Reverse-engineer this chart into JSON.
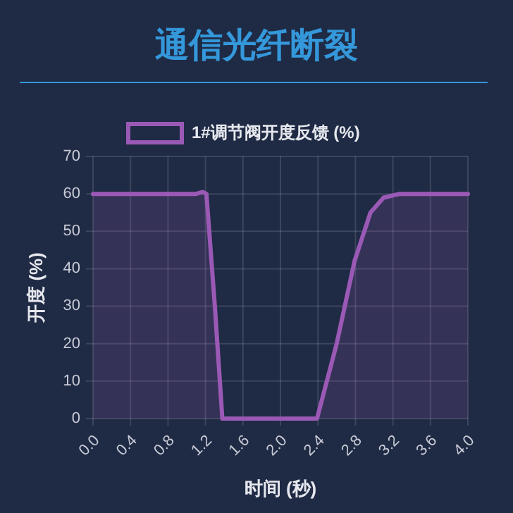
{
  "chart_data": {
    "type": "area",
    "title": "通信光纤断裂",
    "xlabel": "时间 (秒)",
    "ylabel": "开度 (%)",
    "x": [
      0,
      0.4,
      0.8,
      1.1,
      1.17,
      1.21,
      1.3,
      1.38,
      1.6,
      2.0,
      2.39,
      2.6,
      2.79,
      2.96,
      3.1,
      3.27,
      3.6,
      4.0
    ],
    "series": [
      {
        "name": "1#调节阀开度反馈 (%)",
        "color": "#9b59b6",
        "values": [
          60,
          60,
          60,
          60,
          60.5,
          60,
          30,
          0,
          0,
          0,
          0,
          20,
          42,
          55,
          59,
          60,
          60,
          60
        ]
      }
    ],
    "xlim": [
      0,
      4.0
    ],
    "xticks": [
      {
        "value": 0,
        "label": "0.0"
      },
      0.4,
      0.8,
      1.2,
      1.6,
      {
        "value": 2,
        "label": "2.0"
      },
      2.4,
      2.8,
      3.2,
      3.6,
      {
        "value": 4,
        "label": "4.0"
      }
    ],
    "ylim": [
      0,
      70
    ],
    "yticks": [
      0,
      10,
      20,
      30,
      40,
      50,
      60,
      70
    ],
    "grid": true,
    "legend": "top",
    "marker": "none",
    "line_style": "solid"
  }
}
